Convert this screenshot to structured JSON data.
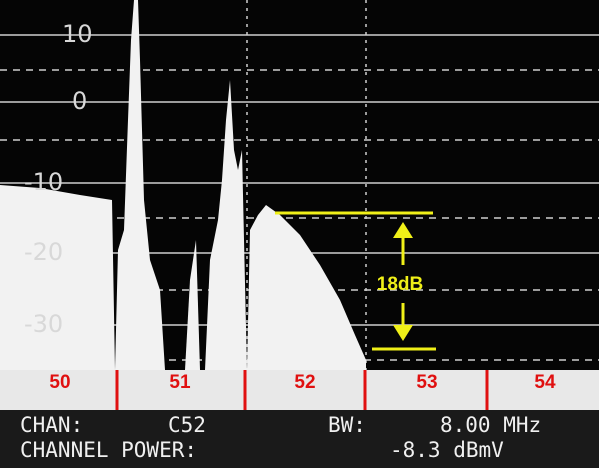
{
  "screen": {
    "level_labels": [
      "10",
      "0",
      "-10",
      "-20",
      "-30"
    ],
    "channel_labels": [
      "50",
      "51",
      "52",
      "53",
      "54"
    ],
    "annotation": "18dB",
    "status": {
      "chan_label": "CHAN:",
      "chan_value": "C52",
      "bw_label": "BW:",
      "bw_value": "8.00 MHz",
      "power_label": "CHANNEL POWER:",
      "power_value": "-8.3 dBmV"
    }
  }
}
